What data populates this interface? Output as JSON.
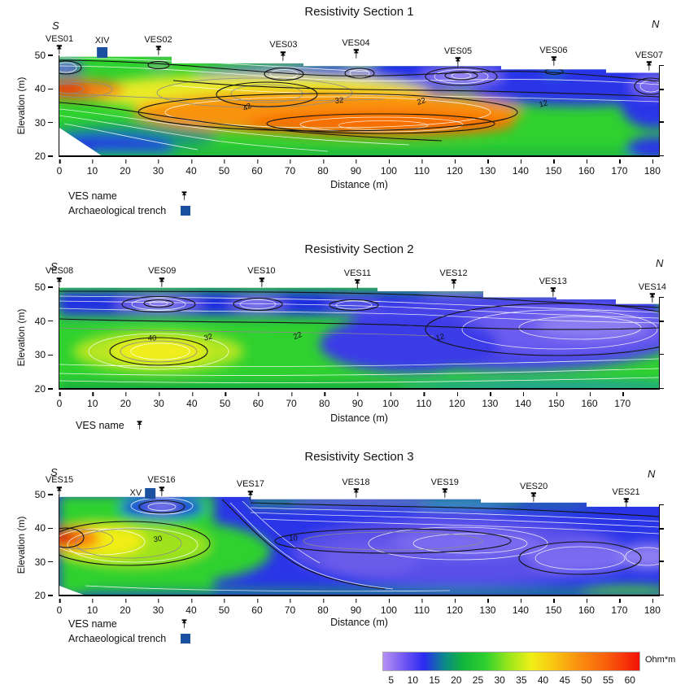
{
  "colors": {
    "trench": "#1b4fa0",
    "pin": "#000000"
  },
  "colorbar": {
    "vmin": 3,
    "vmax": 62,
    "unit": "Ohm*m",
    "gradient": [
      "#b791f5 0%",
      "#6a52f2 9%",
      "#2a2af2 16%",
      "#0b8a8a 24%",
      "#12b43c 31%",
      "#2fd12f 40%",
      "#9ae61c 49%",
      "#f0ee17 58%",
      "#f9c312 67%",
      "#fa9110 76%",
      "#f8600c 87%",
      "#f31205 100%"
    ],
    "ticks": [
      {
        "t": "5",
        "x": 5
      },
      {
        "t": "10",
        "x": 10
      },
      {
        "t": "15",
        "x": 15
      },
      {
        "t": "20",
        "x": 20
      },
      {
        "t": "25",
        "x": 25
      },
      {
        "t": "30",
        "x": 30
      },
      {
        "t": "35",
        "x": 35
      },
      {
        "t": "40",
        "x": 40
      },
      {
        "t": "45",
        "x": 45
      },
      {
        "t": "50",
        "x": 50
      },
      {
        "t": "55",
        "x": 55
      },
      {
        "t": "60",
        "x": 60
      }
    ]
  },
  "chart_data": [
    {
      "type": "contour-heatmap",
      "title": "Resistivity Section 1",
      "south": "S",
      "north": "N",
      "xlabel": "Distance (m)",
      "ylabel": "Elevation (m)",
      "xlim": [
        0,
        182
      ],
      "ylim": [
        20,
        50
      ],
      "unit": "Ohm*m",
      "x_ticks": [
        {
          "t": "0",
          "x": 0
        },
        {
          "t": "10",
          "x": 10
        },
        {
          "t": "20",
          "x": 20
        },
        {
          "t": "30",
          "x": 30
        },
        {
          "t": "40",
          "x": 40
        },
        {
          "t": "50",
          "x": 50
        },
        {
          "t": "60",
          "x": 60
        },
        {
          "t": "70",
          "x": 70
        },
        {
          "t": "80",
          "x": 80
        },
        {
          "t": "90",
          "x": 90
        },
        {
          "t": "100",
          "x": 100
        },
        {
          "t": "110",
          "x": 110
        },
        {
          "t": "120",
          "x": 120
        },
        {
          "t": "130",
          "x": 130
        },
        {
          "t": "140",
          "x": 140
        },
        {
          "t": "150",
          "x": 150
        },
        {
          "t": "160",
          "x": 160
        },
        {
          "t": "170",
          "x": 170
        },
        {
          "t": "180",
          "x": 180
        }
      ],
      "y_ticks": [
        {
          "t": "50",
          "y": 50
        },
        {
          "t": "40",
          "y": 40
        },
        {
          "t": "30",
          "y": 30
        },
        {
          "t": "20",
          "y": 20
        }
      ],
      "stations": [
        {
          "t": "VES01",
          "x": 0,
          "y": 50
        },
        {
          "t": "VES02",
          "x": 30,
          "y": 49.8
        },
        {
          "t": "VES03",
          "x": 68,
          "y": 48.2
        },
        {
          "t": "VES04",
          "x": 90,
          "y": 48.8
        },
        {
          "t": "VES05",
          "x": 121,
          "y": 46.4
        },
        {
          "t": "VES06",
          "x": 150,
          "y": 46.6
        },
        {
          "t": "VES07",
          "x": 179,
          "y": 45.2
        }
      ],
      "trenches": [
        {
          "t": "XIV",
          "x": 13,
          "y": 49.2,
          "cls": "t-top"
        }
      ],
      "contour_labels": [
        {
          "t": "42",
          "x": 57,
          "y": 34.5,
          "rot": -28
        },
        {
          "t": "32",
          "x": 85,
          "y": 36.5,
          "rot": -6
        },
        {
          "t": "22",
          "x": 110,
          "y": 36.3,
          "rot": -18
        },
        {
          "t": "12",
          "x": 147,
          "y": 35.5,
          "rot": -14
        }
      ],
      "legend": {
        "ves": "VES name",
        "trench": "Archaeological trench"
      }
    },
    {
      "type": "contour-heatmap",
      "title": "Resistivity Section 2",
      "south": "S",
      "north": "N",
      "xlabel": "Distance (m)",
      "ylabel": "Elevation (m)",
      "xlim": [
        0,
        181
      ],
      "ylim": [
        20,
        50
      ],
      "unit": "Ohm*m",
      "x_ticks": [
        {
          "t": "0",
          "x": 0
        },
        {
          "t": "10",
          "x": 10
        },
        {
          "t": "20",
          "x": 20
        },
        {
          "t": "30",
          "x": 30
        },
        {
          "t": "40",
          "x": 40
        },
        {
          "t": "50",
          "x": 50
        },
        {
          "t": "60",
          "x": 60
        },
        {
          "t": "70",
          "x": 70
        },
        {
          "t": "80",
          "x": 80
        },
        {
          "t": "90",
          "x": 90
        },
        {
          "t": "100",
          "x": 100
        },
        {
          "t": "110",
          "x": 110
        },
        {
          "t": "120",
          "x": 120
        },
        {
          "t": "130",
          "x": 130
        },
        {
          "t": "140",
          "x": 140
        },
        {
          "t": "150",
          "x": 150
        },
        {
          "t": "160",
          "x": 160
        },
        {
          "t": "170",
          "x": 170
        }
      ],
      "y_ticks": [
        {
          "t": "50",
          "y": 50
        },
        {
          "t": "40",
          "y": 40
        },
        {
          "t": "30",
          "y": 30
        },
        {
          "t": "20",
          "y": 20
        }
      ],
      "stations": [
        {
          "t": "VES08",
          "x": 0,
          "y": 49.9
        },
        {
          "t": "VES09",
          "x": 31,
          "y": 49.9
        },
        {
          "t": "VES10",
          "x": 61,
          "y": 49.9
        },
        {
          "t": "VES11",
          "x": 90,
          "y": 49.4
        },
        {
          "t": "VES12",
          "x": 119,
          "y": 49.2
        },
        {
          "t": "VES13",
          "x": 149,
          "y": 47
        },
        {
          "t": "VES14",
          "x": 179,
          "y": 45.2
        }
      ],
      "trenches": [],
      "contour_labels": [
        {
          "t": "40",
          "x": 28,
          "y": 34.8,
          "rot": 0
        },
        {
          "t": "32",
          "x": 45,
          "y": 35.2,
          "rot": -14
        },
        {
          "t": "22",
          "x": 72,
          "y": 35.6,
          "rot": -22
        },
        {
          "t": "12",
          "x": 115,
          "y": 35.2,
          "rot": -14
        }
      ],
      "legend": {
        "ves": "VES name"
      }
    },
    {
      "type": "contour-heatmap",
      "title": "Resistivity Section 3",
      "south": "S",
      "north": "N",
      "xlabel": "Distance (m)",
      "ylabel": "Elevation (m)",
      "xlim": [
        0,
        182
      ],
      "ylim": [
        20,
        50
      ],
      "unit": "Ohm*m",
      "x_ticks": [
        {
          "t": "0",
          "x": 0
        },
        {
          "t": "10",
          "x": 10
        },
        {
          "t": "20",
          "x": 20
        },
        {
          "t": "30",
          "x": 30
        },
        {
          "t": "40",
          "x": 40
        },
        {
          "t": "50",
          "x": 50
        },
        {
          "t": "60",
          "x": 60
        },
        {
          "t": "70",
          "x": 70
        },
        {
          "t": "80",
          "x": 80
        },
        {
          "t": "90",
          "x": 90
        },
        {
          "t": "100",
          "x": 100
        },
        {
          "t": "110",
          "x": 110
        },
        {
          "t": "120",
          "x": 120
        },
        {
          "t": "130",
          "x": 130
        },
        {
          "t": "140",
          "x": 140
        },
        {
          "t": "150",
          "x": 150
        },
        {
          "t": "160",
          "x": 160
        },
        {
          "t": "170",
          "x": 170
        },
        {
          "t": "180",
          "x": 180
        }
      ],
      "y_ticks": [
        {
          "t": "50",
          "y": 50
        },
        {
          "t": "40",
          "y": 40
        },
        {
          "t": "30",
          "y": 30
        },
        {
          "t": "20",
          "y": 20
        }
      ],
      "stations": [
        {
          "t": "VES15",
          "x": 0,
          "y": 49.4
        },
        {
          "t": "VES16",
          "x": 31,
          "y": 49.4
        },
        {
          "t": "VES17",
          "x": 58,
          "y": 48.2
        },
        {
          "t": "VES18",
          "x": 90,
          "y": 48.8
        },
        {
          "t": "VES19",
          "x": 117,
          "y": 48.8
        },
        {
          "t": "VES20",
          "x": 144,
          "y": 47.6
        },
        {
          "t": "VES21",
          "x": 172,
          "y": 46
        }
      ],
      "trenches": [
        {
          "t": "XV",
          "x": 27,
          "y": 48.8,
          "cls": "t-left"
        }
      ],
      "contour_labels": [
        {
          "t": "30",
          "x": 30,
          "y": 36.6,
          "rot": -8
        },
        {
          "t": "10",
          "x": 71,
          "y": 36.9,
          "rot": 0
        }
      ],
      "legend": {
        "ves": "VES name",
        "trench": "Archaeological trench"
      }
    }
  ]
}
